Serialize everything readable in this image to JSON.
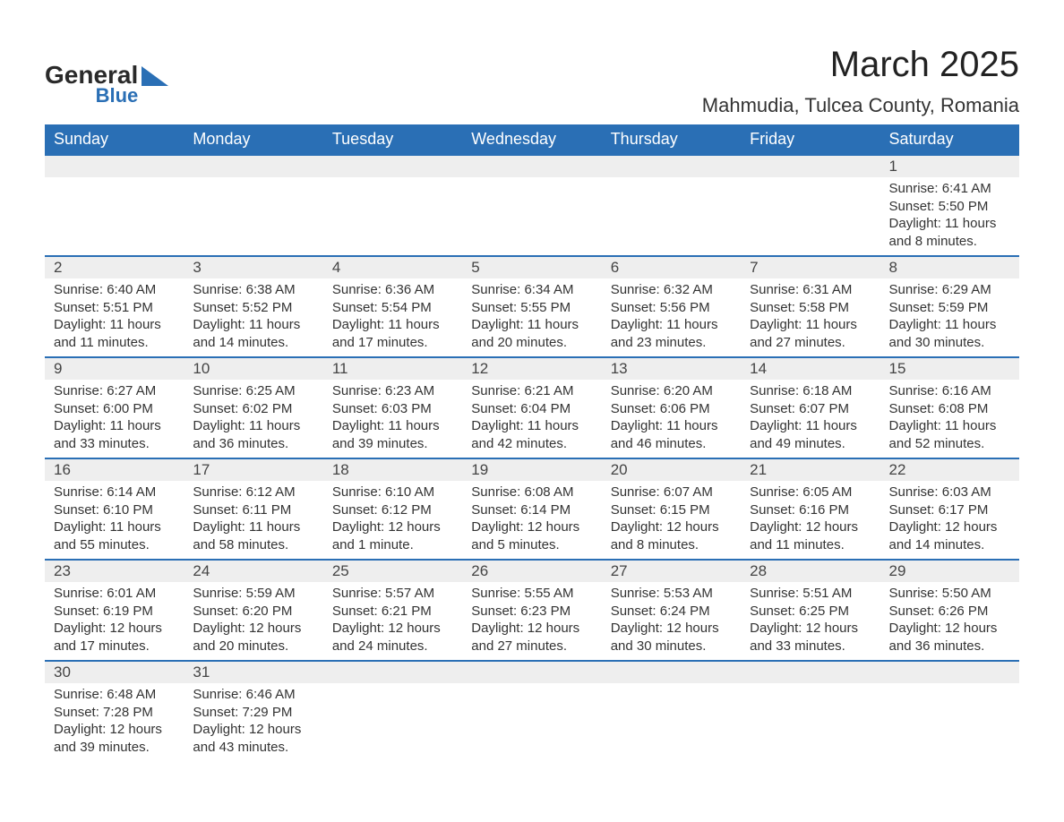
{
  "logo": {
    "general": "General",
    "blue": "Blue"
  },
  "title": "March 2025",
  "location": "Mahmudia, Tulcea County, Romania",
  "colors": {
    "header_bg": "#2a6fb5",
    "header_fg": "#ffffff",
    "daynum_bg": "#eeeeee",
    "row_border": "#2a6fb5",
    "text": "#333333",
    "page_bg": "#ffffff"
  },
  "fonts": {
    "title_size_pt": 30,
    "location_size_pt": 16,
    "header_size_pt": 14,
    "body_size_pt": 11
  },
  "day_headers": [
    "Sunday",
    "Monday",
    "Tuesday",
    "Wednesday",
    "Thursday",
    "Friday",
    "Saturday"
  ],
  "weeks": [
    [
      {
        "empty": true
      },
      {
        "empty": true
      },
      {
        "empty": true
      },
      {
        "empty": true
      },
      {
        "empty": true
      },
      {
        "empty": true
      },
      {
        "num": "1",
        "sunrise": "Sunrise: 6:41 AM",
        "sunset": "Sunset: 5:50 PM",
        "dl1": "Daylight: 11 hours",
        "dl2": "and 8 minutes."
      }
    ],
    [
      {
        "num": "2",
        "sunrise": "Sunrise: 6:40 AM",
        "sunset": "Sunset: 5:51 PM",
        "dl1": "Daylight: 11 hours",
        "dl2": "and 11 minutes."
      },
      {
        "num": "3",
        "sunrise": "Sunrise: 6:38 AM",
        "sunset": "Sunset: 5:52 PM",
        "dl1": "Daylight: 11 hours",
        "dl2": "and 14 minutes."
      },
      {
        "num": "4",
        "sunrise": "Sunrise: 6:36 AM",
        "sunset": "Sunset: 5:54 PM",
        "dl1": "Daylight: 11 hours",
        "dl2": "and 17 minutes."
      },
      {
        "num": "5",
        "sunrise": "Sunrise: 6:34 AM",
        "sunset": "Sunset: 5:55 PM",
        "dl1": "Daylight: 11 hours",
        "dl2": "and 20 minutes."
      },
      {
        "num": "6",
        "sunrise": "Sunrise: 6:32 AM",
        "sunset": "Sunset: 5:56 PM",
        "dl1": "Daylight: 11 hours",
        "dl2": "and 23 minutes."
      },
      {
        "num": "7",
        "sunrise": "Sunrise: 6:31 AM",
        "sunset": "Sunset: 5:58 PM",
        "dl1": "Daylight: 11 hours",
        "dl2": "and 27 minutes."
      },
      {
        "num": "8",
        "sunrise": "Sunrise: 6:29 AM",
        "sunset": "Sunset: 5:59 PM",
        "dl1": "Daylight: 11 hours",
        "dl2": "and 30 minutes."
      }
    ],
    [
      {
        "num": "9",
        "sunrise": "Sunrise: 6:27 AM",
        "sunset": "Sunset: 6:00 PM",
        "dl1": "Daylight: 11 hours",
        "dl2": "and 33 minutes."
      },
      {
        "num": "10",
        "sunrise": "Sunrise: 6:25 AM",
        "sunset": "Sunset: 6:02 PM",
        "dl1": "Daylight: 11 hours",
        "dl2": "and 36 minutes."
      },
      {
        "num": "11",
        "sunrise": "Sunrise: 6:23 AM",
        "sunset": "Sunset: 6:03 PM",
        "dl1": "Daylight: 11 hours",
        "dl2": "and 39 minutes."
      },
      {
        "num": "12",
        "sunrise": "Sunrise: 6:21 AM",
        "sunset": "Sunset: 6:04 PM",
        "dl1": "Daylight: 11 hours",
        "dl2": "and 42 minutes."
      },
      {
        "num": "13",
        "sunrise": "Sunrise: 6:20 AM",
        "sunset": "Sunset: 6:06 PM",
        "dl1": "Daylight: 11 hours",
        "dl2": "and 46 minutes."
      },
      {
        "num": "14",
        "sunrise": "Sunrise: 6:18 AM",
        "sunset": "Sunset: 6:07 PM",
        "dl1": "Daylight: 11 hours",
        "dl2": "and 49 minutes."
      },
      {
        "num": "15",
        "sunrise": "Sunrise: 6:16 AM",
        "sunset": "Sunset: 6:08 PM",
        "dl1": "Daylight: 11 hours",
        "dl2": "and 52 minutes."
      }
    ],
    [
      {
        "num": "16",
        "sunrise": "Sunrise: 6:14 AM",
        "sunset": "Sunset: 6:10 PM",
        "dl1": "Daylight: 11 hours",
        "dl2": "and 55 minutes."
      },
      {
        "num": "17",
        "sunrise": "Sunrise: 6:12 AM",
        "sunset": "Sunset: 6:11 PM",
        "dl1": "Daylight: 11 hours",
        "dl2": "and 58 minutes."
      },
      {
        "num": "18",
        "sunrise": "Sunrise: 6:10 AM",
        "sunset": "Sunset: 6:12 PM",
        "dl1": "Daylight: 12 hours",
        "dl2": "and 1 minute."
      },
      {
        "num": "19",
        "sunrise": "Sunrise: 6:08 AM",
        "sunset": "Sunset: 6:14 PM",
        "dl1": "Daylight: 12 hours",
        "dl2": "and 5 minutes."
      },
      {
        "num": "20",
        "sunrise": "Sunrise: 6:07 AM",
        "sunset": "Sunset: 6:15 PM",
        "dl1": "Daylight: 12 hours",
        "dl2": "and 8 minutes."
      },
      {
        "num": "21",
        "sunrise": "Sunrise: 6:05 AM",
        "sunset": "Sunset: 6:16 PM",
        "dl1": "Daylight: 12 hours",
        "dl2": "and 11 minutes."
      },
      {
        "num": "22",
        "sunrise": "Sunrise: 6:03 AM",
        "sunset": "Sunset: 6:17 PM",
        "dl1": "Daylight: 12 hours",
        "dl2": "and 14 minutes."
      }
    ],
    [
      {
        "num": "23",
        "sunrise": "Sunrise: 6:01 AM",
        "sunset": "Sunset: 6:19 PM",
        "dl1": "Daylight: 12 hours",
        "dl2": "and 17 minutes."
      },
      {
        "num": "24",
        "sunrise": "Sunrise: 5:59 AM",
        "sunset": "Sunset: 6:20 PM",
        "dl1": "Daylight: 12 hours",
        "dl2": "and 20 minutes."
      },
      {
        "num": "25",
        "sunrise": "Sunrise: 5:57 AM",
        "sunset": "Sunset: 6:21 PM",
        "dl1": "Daylight: 12 hours",
        "dl2": "and 24 minutes."
      },
      {
        "num": "26",
        "sunrise": "Sunrise: 5:55 AM",
        "sunset": "Sunset: 6:23 PM",
        "dl1": "Daylight: 12 hours",
        "dl2": "and 27 minutes."
      },
      {
        "num": "27",
        "sunrise": "Sunrise: 5:53 AM",
        "sunset": "Sunset: 6:24 PM",
        "dl1": "Daylight: 12 hours",
        "dl2": "and 30 minutes."
      },
      {
        "num": "28",
        "sunrise": "Sunrise: 5:51 AM",
        "sunset": "Sunset: 6:25 PM",
        "dl1": "Daylight: 12 hours",
        "dl2": "and 33 minutes."
      },
      {
        "num": "29",
        "sunrise": "Sunrise: 5:50 AM",
        "sunset": "Sunset: 6:26 PM",
        "dl1": "Daylight: 12 hours",
        "dl2": "and 36 minutes."
      }
    ],
    [
      {
        "num": "30",
        "sunrise": "Sunrise: 6:48 AM",
        "sunset": "Sunset: 7:28 PM",
        "dl1": "Daylight: 12 hours",
        "dl2": "and 39 minutes."
      },
      {
        "num": "31",
        "sunrise": "Sunrise: 6:46 AM",
        "sunset": "Sunset: 7:29 PM",
        "dl1": "Daylight: 12 hours",
        "dl2": "and 43 minutes."
      },
      {
        "empty": true
      },
      {
        "empty": true
      },
      {
        "empty": true
      },
      {
        "empty": true
      },
      {
        "empty": true
      }
    ]
  ]
}
